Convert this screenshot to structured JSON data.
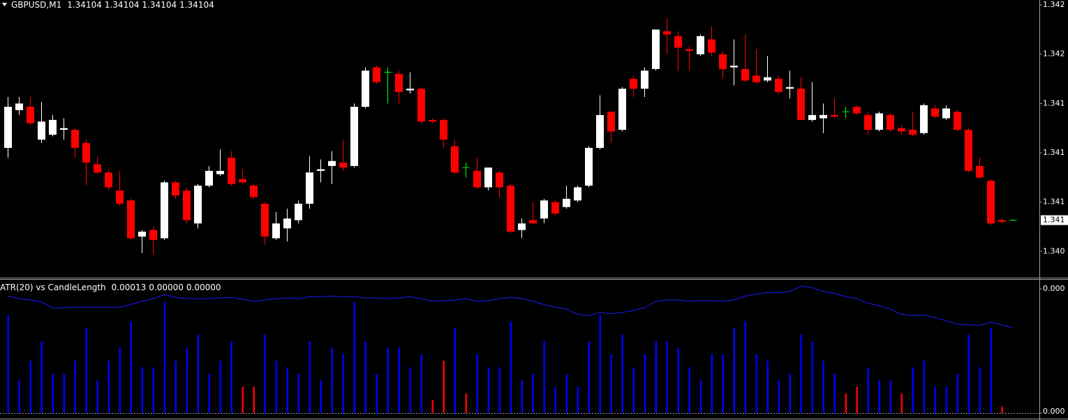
{
  "chart_data": [
    {
      "type": "candlestick",
      "symbol": "GBPUSD,M1",
      "header_values": [
        1.34104,
        1.34104,
        1.34104,
        1.34104
      ],
      "colors": {
        "up": "#ffffff",
        "down": "#ff0000",
        "doji": "#00ff00"
      },
      "ylim": [
        1.34069,
        1.34238
      ],
      "yticks": [
        {
          "value": 1.34085,
          "label": "1.340"
        },
        {
          "value": 1.34115,
          "label": "1.341"
        },
        {
          "value": 1.34145,
          "label": "1.341"
        },
        {
          "value": 1.34175,
          "label": "1.341"
        },
        {
          "value": 1.34205,
          "label": "1.342"
        },
        {
          "value": 1.34235,
          "label": "1.342"
        }
      ],
      "current_price": {
        "value": 1.34104,
        "label": "1.341"
      },
      "open": [
        1.34148,
        1.34171,
        1.34173,
        1.34153,
        1.34156,
        1.34159,
        1.34159,
        1.34151,
        1.34138,
        1.34133,
        1.34122,
        1.34116,
        1.34094,
        1.34098,
        1.34093,
        1.34127,
        1.34122,
        1.34102,
        1.34125,
        1.34132,
        1.34142,
        1.34129,
        1.34125,
        1.34114,
        1.34093,
        1.34099,
        1.34104,
        1.34114,
        1.34134,
        1.34137,
        1.34139,
        1.34137,
        1.34173,
        1.34197,
        1.34194,
        1.34193,
        1.34183,
        1.34184,
        1.34165,
        1.34165,
        1.34149,
        1.34136,
        1.34134,
        1.34124,
        1.34133,
        1.34125,
        1.34098,
        1.34104,
        1.34105,
        1.34115,
        1.34112,
        1.34116,
        1.34125,
        1.34148,
        1.3417,
        1.34159,
        1.3419,
        1.34184,
        1.34196,
        1.34219,
        1.34216,
        1.34208,
        1.34205,
        1.34214,
        1.34205,
        1.34197,
        1.34196,
        1.34192,
        1.34189,
        1.3419,
        1.34184,
        1.34184,
        1.34165,
        1.34166,
        1.34168,
        1.3417,
        1.34173,
        1.34168,
        1.34159,
        1.34168,
        1.3416,
        1.34159,
        1.34157,
        1.34172,
        1.34166,
        1.3417,
        1.34159,
        1.34137,
        1.34128,
        1.34104,
        1.34104
      ],
      "high": [
        1.34179,
        1.34179,
        1.34179,
        1.34176,
        1.34168,
        1.34166,
        1.3416,
        1.34153,
        1.34143,
        1.34135,
        1.34134,
        1.34117,
        1.34098,
        1.341,
        1.34128,
        1.34128,
        1.34124,
        1.34126,
        1.34137,
        1.34147,
        1.34146,
        1.34135,
        1.34126,
        1.34115,
        1.34109,
        1.34111,
        1.34116,
        1.34143,
        1.34141,
        1.34146,
        1.34153,
        1.34175,
        1.34197,
        1.34198,
        1.34197,
        1.34195,
        1.34194,
        1.34185,
        1.34166,
        1.34166,
        1.34153,
        1.34139,
        1.34142,
        1.34136,
        1.34134,
        1.34126,
        1.34105,
        1.34115,
        1.34117,
        1.34116,
        1.34125,
        1.34125,
        1.34149,
        1.3418,
        1.3417,
        1.34185,
        1.34192,
        1.34197,
        1.3422,
        1.34227,
        1.34219,
        1.3421,
        1.34217,
        1.34222,
        1.34207,
        1.34214,
        1.34217,
        1.34208,
        1.34204,
        1.34192,
        1.34195,
        1.34191,
        1.34188,
        1.34175,
        1.34178,
        1.34173,
        1.34174,
        1.3417,
        1.3417,
        1.34169,
        1.34162,
        1.3417,
        1.34175,
        1.34174,
        1.34174,
        1.34171,
        1.3416,
        1.34142,
        1.34129,
        1.34105,
        1.34104
      ],
      "low": [
        1.34142,
        1.34168,
        1.34162,
        1.34151,
        1.34155,
        1.34153,
        1.34142,
        1.34125,
        1.34132,
        1.34122,
        1.34113,
        1.34092,
        1.34084,
        1.34083,
        1.34092,
        1.34117,
        1.34102,
        1.34099,
        1.34124,
        1.34131,
        1.34125,
        1.34126,
        1.34117,
        1.34089,
        1.34092,
        1.34091,
        1.34102,
        1.34111,
        1.34127,
        1.34126,
        1.34134,
        1.34136,
        1.34172,
        1.34187,
        1.34175,
        1.34175,
        1.34181,
        1.34163,
        1.34163,
        1.34148,
        1.34132,
        1.3413,
        1.34123,
        1.34122,
        1.34118,
        1.34096,
        1.34093,
        1.34102,
        1.34102,
        1.34107,
        1.34111,
        1.34115,
        1.34124,
        1.34147,
        1.34151,
        1.34158,
        1.34179,
        1.34179,
        1.34195,
        1.34205,
        1.34195,
        1.34195,
        1.34204,
        1.34204,
        1.3419,
        1.34186,
        1.34188,
        1.34187,
        1.34188,
        1.34181,
        1.34178,
        1.34165,
        1.34164,
        1.34157,
        1.34166,
        1.34166,
        1.34168,
        1.34156,
        1.34158,
        1.34158,
        1.34156,
        1.34155,
        1.34156,
        1.34166,
        1.34165,
        1.34158,
        1.34133,
        1.34129,
        1.34101,
        1.34102,
        1.34104
      ],
      "close": [
        1.34173,
        1.34175,
        1.34163,
        1.34164,
        1.34165,
        1.3416,
        1.34148,
        1.34139,
        1.34133,
        1.34124,
        1.34114,
        1.34093,
        1.34097,
        1.34092,
        1.34127,
        1.34119,
        1.34104,
        1.34125,
        1.34134,
        1.34134,
        1.34126,
        1.34127,
        1.34118,
        1.34094,
        1.34102,
        1.34105,
        1.34114,
        1.34133,
        1.34135,
        1.3414,
        1.34136,
        1.34173,
        1.34195,
        1.34188,
        1.34194,
        1.34182,
        1.34184,
        1.34164,
        1.34164,
        1.34153,
        1.34133,
        1.34136,
        1.34124,
        1.34136,
        1.34124,
        1.34097,
        1.34102,
        1.34102,
        1.34116,
        1.34108,
        1.34117,
        1.34124,
        1.34148,
        1.34168,
        1.34158,
        1.34184,
        1.34184,
        1.34195,
        1.3422,
        1.34217,
        1.34209,
        1.34207,
        1.34216,
        1.34206,
        1.34196,
        1.34198,
        1.34189,
        1.34188,
        1.34191,
        1.34182,
        1.34185,
        1.34165,
        1.34168,
        1.34168,
        1.34167,
        1.3417,
        1.34169,
        1.34159,
        1.34169,
        1.34159,
        1.34158,
        1.34156,
        1.34174,
        1.34167,
        1.34172,
        1.34159,
        1.34134,
        1.3413,
        1.34102,
        1.34103,
        1.34104
      ]
    },
    {
      "type": "combo",
      "title": "ATR(20) vs CandleLength",
      "header_values": [
        0.00013,
        {
          "value": 0,
          "label": "0.00000"
        },
        {
          "value": 0,
          "label": "0.00000"
        }
      ],
      "ylim": [
        0,
        0.000205
      ],
      "yticks": [
        {
          "value": 0.00019,
          "label": "0.000"
        },
        {
          "value": 0,
          "label": "0.000"
        }
      ],
      "bars": {
        "values": [
          0.00015,
          5e-05,
          8e-05,
          0.00011,
          6e-05,
          6e-05,
          8e-05,
          0.00013,
          5e-05,
          8e-05,
          0.0001,
          0.00014,
          7e-05,
          7e-05,
          0.00017,
          8e-05,
          0.0001,
          0.00012,
          6e-05,
          8e-05,
          0.00011,
          4e-05,
          4e-05,
          0.00012,
          8e-05,
          7e-05,
          6e-05,
          0.00011,
          5e-05,
          0.0001,
          9e-05,
          0.00017,
          0.00011,
          6e-05,
          0.0001,
          0.0001,
          7e-05,
          9e-05,
          2e-05,
          8e-05,
          0.00013,
          3e-05,
          9e-05,
          7e-05,
          7e-05,
          0.00014,
          5e-05,
          6e-05,
          0.00011,
          4e-05,
          6e-05,
          4e-05,
          0.00011,
          0.00015,
          9e-05,
          0.00012,
          7e-05,
          9e-05,
          0.00011,
          0.00011,
          0.0001,
          7e-05,
          5e-05,
          9e-05,
          9e-05,
          0.00013,
          0.00014,
          9e-05,
          8e-05,
          5e-05,
          6e-05,
          0.00012,
          0.00011,
          8e-05,
          6e-05,
          3e-05,
          4e-05,
          7e-05,
          5e-05,
          5e-05,
          3e-05,
          7e-05,
          8e-05,
          4e-05,
          4e-05,
          6e-05,
          0.00012,
          7e-05,
          0.00013,
          1e-05,
          0
        ],
        "colors": [
          "#0000ff",
          "#0000ff",
          "#0000ff",
          "#0000ff",
          "#0000ff",
          "#0000ff",
          "#0000ff",
          "#0000ff",
          "#0000ff",
          "#0000ff",
          "#0000ff",
          "#0000ff",
          "#0000ff",
          "#0000ff",
          "#0000ff",
          "#0000ff",
          "#0000ff",
          "#0000ff",
          "#0000ff",
          "#0000ff",
          "#0000ff",
          "#ff0000",
          "#ff0000",
          "#0000ff",
          "#0000ff",
          "#0000ff",
          "#0000ff",
          "#0000ff",
          "#0000ff",
          "#0000ff",
          "#0000ff",
          "#0000ff",
          "#0000ff",
          "#0000ff",
          "#0000ff",
          "#0000ff",
          "#0000ff",
          "#0000ff",
          "#ff0000",
          "#ff0000",
          "#0000ff",
          "#ff0000",
          "#0000ff",
          "#0000ff",
          "#0000ff",
          "#0000ff",
          "#0000ff",
          "#0000ff",
          "#0000ff",
          "#0000ff",
          "#0000ff",
          "#0000ff",
          "#0000ff",
          "#0000ff",
          "#0000ff",
          "#0000ff",
          "#0000ff",
          "#0000ff",
          "#0000ff",
          "#0000ff",
          "#0000ff",
          "#0000ff",
          "#0000ff",
          "#0000ff",
          "#0000ff",
          "#0000ff",
          "#0000ff",
          "#0000ff",
          "#0000ff",
          "#0000ff",
          "#0000ff",
          "#0000ff",
          "#0000ff",
          "#0000ff",
          "#0000ff",
          "#ff0000",
          "#ff0000",
          "#0000ff",
          "#0000ff",
          "#0000ff",
          "#ff0000",
          "#0000ff",
          "#0000ff",
          "#0000ff",
          "#0000ff",
          "#0000ff",
          "#0000ff",
          "#0000ff",
          "#0000ff",
          "#ff0000",
          "#0000ff"
        ]
      },
      "line": {
        "color": "#1a1aff",
        "values": [
          0.000179,
          0.000175,
          0.000173,
          0.00017,
          0.000161,
          0.000161,
          0.000162,
          0.000162,
          0.000162,
          0.000162,
          0.000162,
          0.000166,
          0.000171,
          0.000175,
          0.000181,
          0.000177,
          0.000175,
          0.000175,
          0.000175,
          0.000176,
          0.000177,
          0.000174,
          0.000171,
          0.000173,
          0.000175,
          0.000176,
          0.000175,
          0.000178,
          0.000178,
          0.000179,
          0.000178,
          0.000178,
          0.000176,
          0.000176,
          0.000175,
          0.000176,
          0.000178,
          0.000175,
          0.000171,
          0.000172,
          0.000173,
          0.000175,
          0.000171,
          0.000172,
          0.000175,
          0.000177,
          0.000175,
          0.000171,
          0.000166,
          0.000162,
          0.000159,
          0.000151,
          0.000149,
          0.000154,
          0.000152,
          0.000154,
          0.000157,
          0.000161,
          0.000171,
          0.000173,
          0.000173,
          0.000171,
          0.000172,
          0.000172,
          0.000171,
          0.000173,
          0.000179,
          0.000182,
          0.000184,
          0.000184,
          0.000186,
          0.000194,
          0.000192,
          0.000186,
          0.000183,
          0.000178,
          0.000175,
          0.000168,
          0.000164,
          0.000159,
          0.000151,
          0.000149,
          0.00015,
          0.000146,
          0.000141,
          0.000136,
          0.000135,
          0.000134,
          0.000139,
          0.000135,
          0.00013
        ]
      }
    }
  ]
}
